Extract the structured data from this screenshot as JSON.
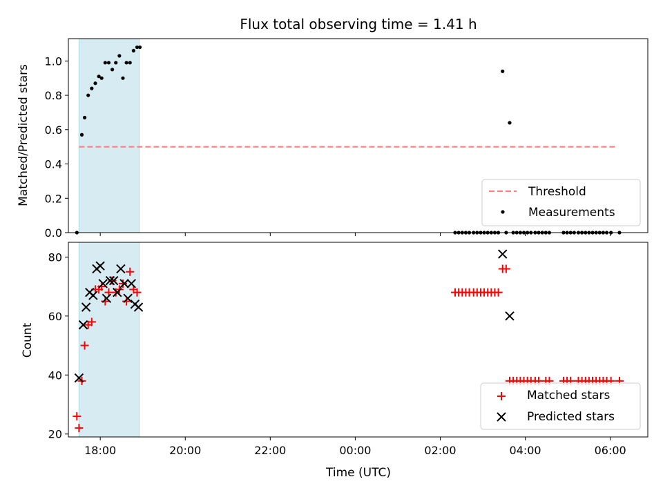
{
  "chart_data": {
    "type": "scatter",
    "title": "Flux total observing time = 1.41 h",
    "xlabel": "Time (UTC)",
    "xlim": [
      "17:15",
      "06:53"
    ],
    "x_ticks": [
      "18:00",
      "20:00",
      "22:00",
      "00:00",
      "02:00",
      "04:00",
      "06:00"
    ],
    "highlight_span": [
      "17:30",
      "18:55"
    ],
    "colors": {
      "threshold": "#ff8080",
      "measurements": "#000000",
      "matched": "#ff0000",
      "predicted": "#000000",
      "span": "#add8e6"
    },
    "panels": [
      {
        "ylabel": "Matched/Predicted stars",
        "ylim": [
          0.0,
          1.13
        ],
        "y_ticks": [
          "0.0",
          "0.2",
          "0.4",
          "0.6",
          "0.8",
          "1.0"
        ],
        "legend": {
          "position": "lower-right",
          "entries": [
            "Threshold",
            "Measurements"
          ]
        },
        "series": [
          {
            "name": "Threshold",
            "style": "dashed-line",
            "points": [
              [
                "17:30",
                0.5
              ],
              [
                "06:10",
                0.5
              ]
            ]
          },
          {
            "name": "Measurements",
            "style": "dot",
            "points": [
              [
                "17:27",
                0.0
              ],
              [
                "17:34",
                0.57
              ],
              [
                "17:38",
                0.67
              ],
              [
                "17:43",
                0.8
              ],
              [
                "17:48",
                0.84
              ],
              [
                "17:53",
                0.87
              ],
              [
                "17:58",
                0.91
              ],
              [
                "18:02",
                0.9
              ],
              [
                "18:07",
                0.99
              ],
              [
                "18:12",
                0.99
              ],
              [
                "18:17",
                0.95
              ],
              [
                "18:22",
                0.99
              ],
              [
                "18:27",
                1.03
              ],
              [
                "18:32",
                0.9
              ],
              [
                "18:37",
                0.99
              ],
              [
                "18:42",
                0.99
              ],
              [
                "18:47",
                1.06
              ],
              [
                "18:52",
                1.08
              ],
              [
                "18:56",
                1.08
              ],
              [
                "02:21",
                0.0
              ],
              [
                "02:26",
                0.0
              ],
              [
                "02:31",
                0.0
              ],
              [
                "02:36",
                0.0
              ],
              [
                "02:41",
                0.0
              ],
              [
                "02:47",
                0.0
              ],
              [
                "02:52",
                0.0
              ],
              [
                "02:57",
                0.0
              ],
              [
                "03:02",
                0.0
              ],
              [
                "03:07",
                0.0
              ],
              [
                "03:12",
                0.0
              ],
              [
                "03:17",
                0.0
              ],
              [
                "03:22",
                0.0
              ],
              [
                "03:28",
                0.94
              ],
              [
                "03:38",
                0.64
              ],
              [
                "03:33",
                0.0
              ],
              [
                "03:43",
                0.0
              ],
              [
                "03:48",
                0.0
              ],
              [
                "03:53",
                0.0
              ],
              [
                "03:58",
                0.0
              ],
              [
                "04:03",
                0.0
              ],
              [
                "04:08",
                0.0
              ],
              [
                "04:14",
                0.0
              ],
              [
                "04:19",
                0.0
              ],
              [
                "04:24",
                0.0
              ],
              [
                "04:29",
                0.0
              ],
              [
                "04:34",
                0.0
              ],
              [
                "04:54",
                0.0
              ],
              [
                "04:59",
                0.0
              ],
              [
                "05:04",
                0.0
              ],
              [
                "05:09",
                0.0
              ],
              [
                "05:15",
                0.0
              ],
              [
                "05:20",
                0.0
              ],
              [
                "05:25",
                0.0
              ],
              [
                "05:30",
                0.0
              ],
              [
                "05:35",
                0.0
              ],
              [
                "05:40",
                0.0
              ],
              [
                "05:45",
                0.0
              ],
              [
                "05:50",
                0.0
              ],
              [
                "05:55",
                0.0
              ],
              [
                "06:01",
                0.0
              ],
              [
                "06:13",
                0.0
              ]
            ]
          }
        ]
      },
      {
        "ylabel": "Count",
        "ylim": [
          19.0,
          85.0
        ],
        "y_ticks": [
          "20",
          "40",
          "60",
          "80"
        ],
        "legend": {
          "position": "lower-right",
          "entries": [
            "Matched stars",
            "Predicted stars"
          ]
        },
        "series": [
          {
            "name": "Matched stars",
            "style": "plus",
            "points": [
              [
                "17:27",
                26
              ],
              [
                "17:30",
                22
              ],
              [
                "17:34",
                38
              ],
              [
                "17:38",
                50
              ],
              [
                "17:43",
                57
              ],
              [
                "17:48",
                58
              ],
              [
                "17:53",
                69
              ],
              [
                "17:58",
                69
              ],
              [
                "18:02",
                70
              ],
              [
                "18:07",
                65
              ],
              [
                "18:12",
                68
              ],
              [
                "18:17",
                72
              ],
              [
                "18:22",
                68
              ],
              [
                "18:27",
                69
              ],
              [
                "18:32",
                71
              ],
              [
                "18:37",
                65
              ],
              [
                "18:42",
                75
              ],
              [
                "18:47",
                69
              ],
              [
                "18:52",
                68
              ],
              [
                "02:21",
                68
              ],
              [
                "02:26",
                68
              ],
              [
                "02:31",
                68
              ],
              [
                "02:36",
                68
              ],
              [
                "02:41",
                68
              ],
              [
                "02:47",
                68
              ],
              [
                "02:52",
                68
              ],
              [
                "02:57",
                68
              ],
              [
                "03:02",
                68
              ],
              [
                "03:07",
                68
              ],
              [
                "03:12",
                68
              ],
              [
                "03:17",
                68
              ],
              [
                "03:22",
                68
              ],
              [
                "03:28",
                76
              ],
              [
                "03:33",
                76
              ],
              [
                "03:38",
                38
              ],
              [
                "03:43",
                38
              ],
              [
                "03:48",
                38
              ],
              [
                "03:53",
                38
              ],
              [
                "03:58",
                38
              ],
              [
                "04:03",
                38
              ],
              [
                "04:08",
                38
              ],
              [
                "04:14",
                38
              ],
              [
                "04:19",
                38
              ],
              [
                "04:29",
                38
              ],
              [
                "04:34",
                38
              ],
              [
                "04:54",
                38
              ],
              [
                "04:59",
                38
              ],
              [
                "05:04",
                38
              ],
              [
                "05:15",
                38
              ],
              [
                "05:20",
                38
              ],
              [
                "05:25",
                38
              ],
              [
                "05:30",
                38
              ],
              [
                "05:35",
                38
              ],
              [
                "05:40",
                38
              ],
              [
                "05:45",
                38
              ],
              [
                "05:50",
                38
              ],
              [
                "05:55",
                38
              ],
              [
                "06:01",
                38
              ],
              [
                "06:13",
                38
              ]
            ]
          },
          {
            "name": "Predicted stars",
            "style": "x",
            "points": [
              [
                "17:30",
                39
              ],
              [
                "17:36",
                57
              ],
              [
                "17:40",
                63
              ],
              [
                "17:45",
                68
              ],
              [
                "17:50",
                67
              ],
              [
                "17:55",
                76
              ],
              [
                "18:00",
                77
              ],
              [
                "18:04",
                71
              ],
              [
                "18:09",
                66
              ],
              [
                "18:14",
                72
              ],
              [
                "18:19",
                72
              ],
              [
                "18:24",
                68
              ],
              [
                "18:29",
                76
              ],
              [
                "18:34",
                71
              ],
              [
                "18:39",
                66
              ],
              [
                "18:44",
                71
              ],
              [
                "18:49",
                64
              ],
              [
                "18:54",
                63
              ],
              [
                "03:28",
                81
              ],
              [
                "03:38",
                60
              ]
            ]
          }
        ]
      }
    ]
  }
}
